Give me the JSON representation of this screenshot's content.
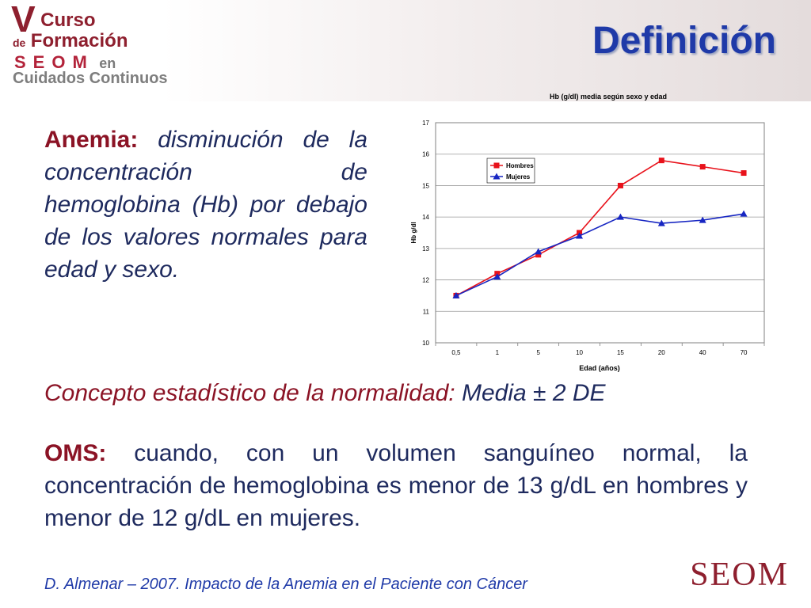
{
  "header": {
    "logo": {
      "v": "V",
      "curso": "Curso",
      "de": "de",
      "formacion": "Formación",
      "seom": "SEOM",
      "en": "en",
      "cuidados": "Cuidados Continuos"
    },
    "title": "Definición"
  },
  "anemia": {
    "term": "Anemia:",
    "definition": "disminución de la concentración de hemoglobina (Hb) por debajo de los valores normales para edad y sexo."
  },
  "statistics": {
    "label": "Concepto estadístico de la normalidad:",
    "value": "Media ± 2 DE"
  },
  "oms": {
    "term": "OMS:",
    "text": "cuando, con un volumen sanguíneo normal, la concentración de hemoglobina es menor de 13 g/dL en hombres y menor de 12 g/dL en mujeres."
  },
  "footer": {
    "reference": "D. Almenar – 2007.   Impacto de la Anemia en el Paciente con Cáncer",
    "logo": "SEOM"
  },
  "chart_data": {
    "type": "line",
    "title": "Hb (g/dl) media según sexo y edad",
    "xlabel": "Edad (años)",
    "ylabel": "Hb g/dl",
    "categories": [
      "0,5",
      "1",
      "5",
      "10",
      "15",
      "20",
      "40",
      "70"
    ],
    "ylim": [
      10,
      17
    ],
    "yticks": [
      10,
      11,
      12,
      13,
      14,
      15,
      16,
      17
    ],
    "grid": true,
    "legend": "top-left",
    "series": [
      {
        "name": "Hombres",
        "values": [
          11.5,
          12.2,
          12.8,
          13.5,
          15.0,
          15.8,
          15.6,
          15.4
        ],
        "color": "#e8121b",
        "marker": "square"
      },
      {
        "name": "Mujeres",
        "values": [
          11.5,
          12.1,
          12.9,
          13.4,
          14.0,
          13.8,
          13.9,
          14.1
        ],
        "color": "#1726c2",
        "marker": "triangle"
      }
    ]
  },
  "colors": {
    "title": "#1f3aa8",
    "accent_red": "#8b1325",
    "body_text": "#1e2a5e"
  }
}
